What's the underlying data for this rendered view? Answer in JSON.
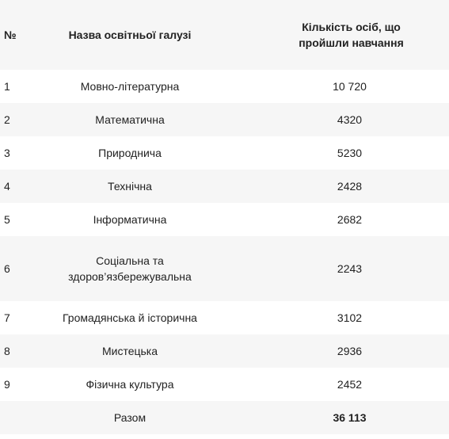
{
  "table": {
    "header": [
      "№",
      "Назва освітньої галузі",
      "Кількість осіб, що пройшли навчання"
    ],
    "rows": [
      [
        "1",
        "Мовно-літературна",
        "10 720"
      ],
      [
        "2",
        "Математична",
        "4320"
      ],
      [
        "3",
        "Природнича",
        "5230"
      ],
      [
        "4",
        "Технічна",
        "2428"
      ],
      [
        "5",
        "Інформатична",
        "2682"
      ],
      [
        "6",
        "Соціальна та\nздоров’язбережувальна",
        "2243"
      ],
      [
        "7",
        "Громадянська й історична",
        "3102"
      ],
      [
        "8",
        "Мистецька",
        "2936"
      ],
      [
        "9",
        "Фізична культура",
        "2452"
      ]
    ],
    "total": {
      "label": "Разом",
      "value": "36 113"
    }
  }
}
